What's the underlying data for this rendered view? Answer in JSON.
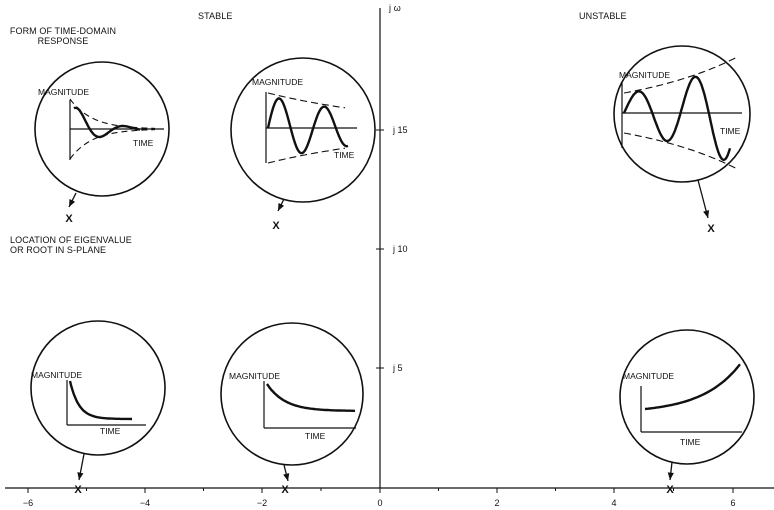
{
  "labels": {
    "stable": "STABLE",
    "unstable": "UNSTABLE",
    "time_domain_title": "FORM OF TIME-DOMAIN\nRESPONSE",
    "eigen_title": "LOCATION OF EIGENVALUE\nOR ROOT IN S-PLANE",
    "imag_axis": "j ω"
  },
  "x_ticks": [
    "−6",
    "−4",
    "−2",
    "0",
    "2",
    "4",
    "6"
  ],
  "y_ticks": [
    "j 5",
    "j 10",
    "j 15"
  ],
  "root_marker": "X",
  "insets": [
    {
      "magnitude": "MAGNITUDE",
      "time": "TIME",
      "kind": "damped-oscillation"
    },
    {
      "magnitude": "MAGNITUDE",
      "time": "TIME",
      "kind": "slow-damped-oscillation"
    },
    {
      "magnitude": "MAGNITUDE",
      "time": "TIME",
      "kind": "growing-oscillation"
    },
    {
      "magnitude": "MAGNITUDE",
      "time": "TIME",
      "kind": "fast-decay"
    },
    {
      "magnitude": "MAGNITUDE",
      "time": "TIME",
      "kind": "slow-decay"
    },
    {
      "magnitude": "MAGNITUDE",
      "time": "TIME",
      "kind": "growth"
    }
  ]
}
